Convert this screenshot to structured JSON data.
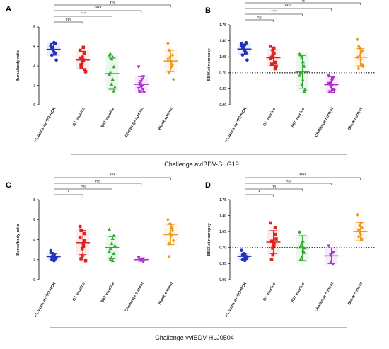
{
  "captions": [
    "Challenge avIBDV-SHG19",
    "Challenge vvIBDV-HLJ0504"
  ],
  "chart_data": [
    {
      "panel": "A",
      "type": "scatter",
      "ylabel": "Bursa/body ratio",
      "ylim": [
        0,
        8
      ],
      "yticks": [
        "0",
        "2",
        "4",
        "6",
        "8"
      ],
      "categories": [
        "r-L.lactis-avVP2-RCK",
        "G1 vaccine",
        "B87 vaccine",
        "Challenge control",
        "Blank control"
      ],
      "colors": [
        "#2233bb",
        "#dd2222",
        "#33aa33",
        "#aa33cc",
        "#ee9922"
      ],
      "markers": [
        "circle",
        "square",
        "triangle-up",
        "triangle-down",
        "diamond"
      ],
      "points": [
        [
          6.1,
          5.9,
          5.6,
          5.3,
          6.3,
          5.1,
          5.8,
          6.4,
          5.4,
          4.6,
          6.0
        ],
        [
          5.6,
          4.4,
          4.9,
          3.6,
          5.3,
          4.1,
          3.9,
          5.9,
          4.6,
          3.4,
          4.8
        ],
        [
          5.1,
          2.1,
          4.7,
          1.4,
          3.9,
          3.3,
          5.2,
          2.6,
          4.9,
          1.8,
          3.1
        ],
        [
          3.9,
          2.4,
          1.9,
          1.6,
          2.9,
          1.4,
          2.2,
          1.9,
          2.6,
          1.3,
          1.7
        ],
        [
          6.3,
          4.9,
          4.5,
          4.1,
          5.1,
          3.3,
          5.6,
          4.4,
          3.9,
          2.6,
          4.7
        ]
      ],
      "means": [
        5.7,
        4.6,
        3.2,
        2.1,
        4.5
      ],
      "sd": [
        0.6,
        0.9,
        1.6,
        0.8,
        1.1
      ],
      "significance": [
        {
          "label": "ns",
          "to": 1
        },
        {
          "label": "***",
          "to": 2
        },
        {
          "label": "****",
          "to": 3
        },
        {
          "label": "ns",
          "to": 4
        }
      ]
    },
    {
      "panel": "B",
      "type": "scatter",
      "ylabel": "BBIX at necropsy",
      "ylim": [
        0,
        1.75
      ],
      "yticks": [
        "0.00",
        "0.35",
        "0.70",
        "1.05",
        "1.40",
        "1.75"
      ],
      "threshold": 0.7,
      "categories": [
        "r-L.lactis-avVP2-RCK",
        "G1 vaccine",
        "B87 vaccine",
        "Challenge control",
        "Blank control"
      ],
      "colors": [
        "#2233bb",
        "#dd2222",
        "#33aa33",
        "#aa33cc",
        "#ee9922"
      ],
      "markers": [
        "circle",
        "square",
        "triangle-up",
        "triangle-down",
        "diamond"
      ],
      "points": [
        [
          1.34,
          1.27,
          1.21,
          1.14,
          1.36,
          1.09,
          1.24,
          1.31,
          1.17,
          0.98,
          1.29
        ],
        [
          1.28,
          1.19,
          1.09,
          0.93,
          0.79,
          1.04,
          0.89,
          1.24,
          1.13,
          0.84,
          1.01
        ],
        [
          1.11,
          0.44,
          1.04,
          0.29,
          0.84,
          0.69,
          1.09,
          0.54,
          0.94,
          0.34,
          0.64
        ],
        [
          0.64,
          0.49,
          0.39,
          0.33,
          0.59,
          0.29,
          0.44,
          0.41,
          0.53,
          0.31,
          0.47
        ],
        [
          1.43,
          1.24,
          1.08,
          0.88,
          1.18,
          0.79,
          1.28,
          0.99,
          1.14,
          0.84,
          1.04
        ]
      ],
      "means": [
        1.22,
        1.03,
        0.72,
        0.44,
        1.04
      ],
      "sd": [
        0.11,
        0.17,
        0.36,
        0.17,
        0.19
      ],
      "significance": [
        {
          "label": "ns",
          "to": 1
        },
        {
          "label": "***",
          "to": 2
        },
        {
          "label": "****",
          "to": 3
        },
        {
          "label": "ns",
          "to": 4
        }
      ]
    },
    {
      "panel": "C",
      "type": "scatter",
      "ylabel": "Bursa/body ratio",
      "ylim": [
        0,
        8
      ],
      "yticks": [
        "0",
        "2",
        "4",
        "6",
        "8"
      ],
      "categories": [
        "r-L.lactis-avVP2-RCK",
        "G1 vaccine",
        "B87 vaccine",
        "Challenge control",
        "Blank control"
      ],
      "colors": [
        "#2233bb",
        "#dd2222",
        "#33aa33",
        "#aa33cc",
        "#ee9922"
      ],
      "markers": [
        "circle",
        "square",
        "triangle-up",
        "triangle-down",
        "diamond"
      ],
      "points": [
        [
          2.9,
          2.6,
          2.4,
          2.2,
          2.1,
          2.3,
          2.0,
          1.9,
          2.5,
          2.2,
          2.7
        ],
        [
          5.3,
          3.1,
          2.4,
          3.9,
          4.6,
          2.1,
          4.9,
          3.6,
          3.3,
          1.9,
          4.2
        ],
        [
          5.0,
          2.2,
          3.6,
          4.4,
          2.6,
          2.0,
          3.1,
          4.1,
          1.9,
          3.4,
          2.8
        ],
        [
          2.2,
          2.0,
          1.9,
          1.8,
          2.1
        ],
        [
          6.0,
          5.6,
          4.6,
          5.1,
          4.9,
          3.6,
          2.3,
          4.4,
          5.3,
          3.9
        ]
      ],
      "means": [
        2.3,
        3.7,
        3.2,
        2.0,
        4.5
      ],
      "sd": [
        0.3,
        1.2,
        1.1,
        0.15,
        1.0
      ],
      "significance": [
        {
          "label": "*",
          "to": 1
        },
        {
          "label": "ns",
          "to": 2
        },
        {
          "label": "ns",
          "to": 3
        },
        {
          "label": "***",
          "to": 4
        }
      ]
    },
    {
      "panel": "D",
      "type": "scatter",
      "ylabel": "BBIX at necropsy",
      "ylim": [
        0,
        1.75
      ],
      "yticks": [
        "0.00",
        "0.35",
        "0.70",
        "1.05",
        "1.40",
        "1.75"
      ],
      "threshold": 0.7,
      "categories": [
        "r-L.lactis-avVP2-RCK",
        "G1 vaccine",
        "B87 vaccine",
        "Challenge control",
        "Blank control"
      ],
      "colors": [
        "#2233bb",
        "#dd2222",
        "#33aa33",
        "#aa33cc",
        "#ee9922"
      ],
      "markers": [
        "circle",
        "square",
        "triangle-up",
        "triangle-down",
        "diamond"
      ],
      "points": [
        [
          0.64,
          0.57,
          0.52,
          0.49,
          0.47,
          0.54,
          0.44,
          0.42,
          0.55,
          0.5
        ],
        [
          1.24,
          0.69,
          0.54,
          0.99,
          1.14,
          0.44,
          0.84,
          0.74,
          0.79,
          0.89
        ],
        [
          1.04,
          0.49,
          0.79,
          0.69,
          0.59,
          0.44,
          0.74,
          0.84,
          0.64
        ],
        [
          0.74,
          0.54,
          0.39,
          0.34,
          0.59
        ],
        [
          1.42,
          1.19,
          1.04,
          0.89,
          1.14,
          1.09,
          0.94,
          0.99,
          1.24
        ]
      ],
      "means": [
        0.51,
        0.82,
        0.69,
        0.52,
        1.05
      ],
      "sd": [
        0.07,
        0.25,
        0.27,
        0.17,
        0.2
      ],
      "significance": [
        {
          "label": "*",
          "to": 1
        },
        {
          "label": "ns",
          "to": 2
        },
        {
          "label": "ns",
          "to": 3
        },
        {
          "label": "****",
          "to": 4
        }
      ]
    }
  ]
}
